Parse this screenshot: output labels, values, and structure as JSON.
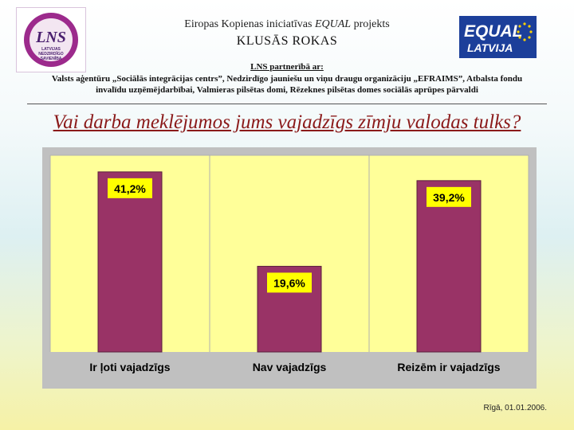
{
  "header": {
    "line1_prefix": "Eiropas Kopienas iniciatīvas ",
    "line1_program": "EQUAL",
    "line1_suffix": " projekts",
    "project_name": "KLUSĀS ROKAS"
  },
  "logos": {
    "lns_text": "LNS",
    "lns_caption": [
      "LATVIJAS",
      "NEDZIRDĪGO",
      "SAVIENĪBA"
    ],
    "equal_text": "EQUAL",
    "equal_sub": "LATVIJA"
  },
  "partners": {
    "title": "LNS partnerībā ar:",
    "line1": "Valsts aģentūru „Sociālās integrācijas centrs”,  Nedzirdīgo jauniešu un viņu draugu organizāciju „EFRAIMS”,  Atbalsta fondu",
    "line2": "invalīdu uzņēmējdarbībai, Valmieras pilsētas domi, Rēzeknes pilsētas domes sociālās aprūpes pārvaldi"
  },
  "question": "Vai darba meklējumos jums vajadzīgs zīmju valodas tulks?",
  "chart_data": {
    "type": "bar",
    "categories": [
      "Ir ļoti vajadzīgs",
      "Nav vajadzīgs",
      "Reizēm ir vajadzīgs"
    ],
    "values": [
      41.2,
      19.6,
      39.2
    ],
    "data_labels": [
      "41,2%",
      "19,6%",
      "39,2%"
    ],
    "ylim": [
      0,
      45
    ],
    "grid": true,
    "bar_color": "#993366",
    "plot_background": "#ffff99",
    "label_background": "#ffff00"
  },
  "footer": {
    "date": "Rīgā, 01.01.2006."
  }
}
